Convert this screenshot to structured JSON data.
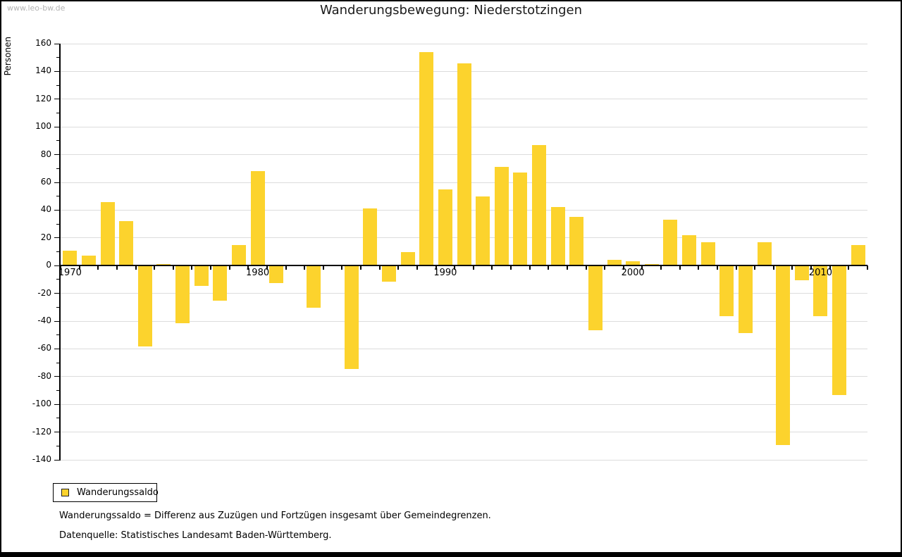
{
  "watermark": "www.leo-bw.de",
  "title": "Wanderungsbewegung: Niederstotzingen",
  "legend": {
    "label": "Wanderungssaldo"
  },
  "footnotes": {
    "definition": "Wanderungssaldo = Differenz aus Zuzügen und Fortzügen insgesamt über Gemeindegrenzen.",
    "source": "Datenquelle: Statistisches Landesamt Baden-Württemberg."
  },
  "chart_data": {
    "type": "bar",
    "title": "Wanderungsbewegung: Niederstotzingen",
    "series_name": "Wanderungssaldo",
    "xlabel": "",
    "ylabel": "Personen",
    "categories": [
      1970,
      1971,
      1972,
      1973,
      1974,
      1975,
      1976,
      1977,
      1978,
      1979,
      1980,
      1981,
      1982,
      1983,
      1984,
      1985,
      1986,
      1987,
      1988,
      1989,
      1990,
      1991,
      1992,
      1993,
      1994,
      1995,
      1996,
      1997,
      1998,
      1999,
      2000,
      2001,
      2002,
      2003,
      2004,
      2005,
      2006,
      2007,
      2008,
      2009,
      2010,
      2011,
      2012
    ],
    "values": [
      11,
      7,
      46,
      32,
      -58,
      1,
      -41,
      -14,
      -25,
      15,
      68,
      -12,
      0,
      -30,
      0,
      -74,
      41,
      -11,
      10,
      154,
      55,
      146,
      50,
      71,
      67,
      87,
      42,
      35,
      -46,
      4,
      3,
      1,
      33,
      22,
      17,
      -36,
      -48,
      17,
      -129,
      -10,
      -36,
      -93,
      15
    ],
    "ylim": [
      -140,
      160
    ],
    "ytick_major": 20,
    "ytick_minor": 10,
    "xtick_labels": [
      "1970",
      "1980",
      "1990",
      "2000",
      "2010"
    ],
    "grid": true,
    "legend_position": "bottom-left",
    "bar_color": "#fcd32d",
    "grid_color": "#dcdcdc",
    "axis_color": "#000000"
  }
}
